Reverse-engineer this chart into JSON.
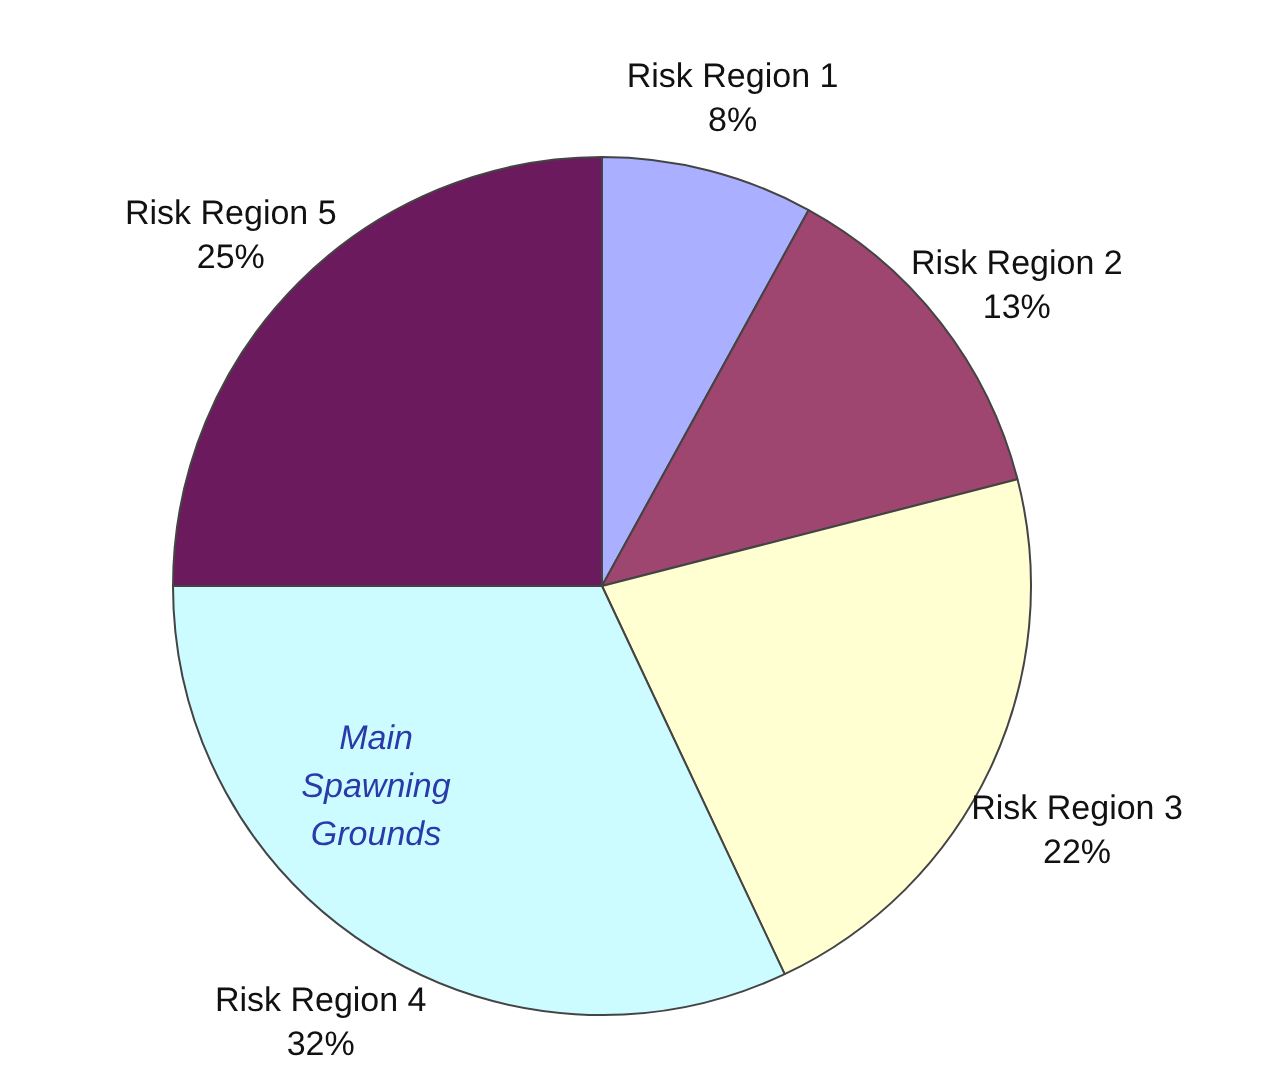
{
  "chart_data": {
    "type": "pie",
    "categories": [
      "Risk Region 1",
      "Risk Region 2",
      "Risk Region 3",
      "Risk Region 4",
      "Risk Region 5"
    ],
    "values": [
      8,
      13,
      22,
      32,
      25
    ],
    "value_labels": [
      "8%",
      "13%",
      "22%",
      "32%",
      "25%"
    ],
    "colors": [
      "#aab0ff",
      "#9e4570",
      "#ffffd2",
      "#ccfcff",
      "#6c1a5e"
    ],
    "annotations": [
      "Main Spawning Grounds"
    ],
    "legend": false
  }
}
